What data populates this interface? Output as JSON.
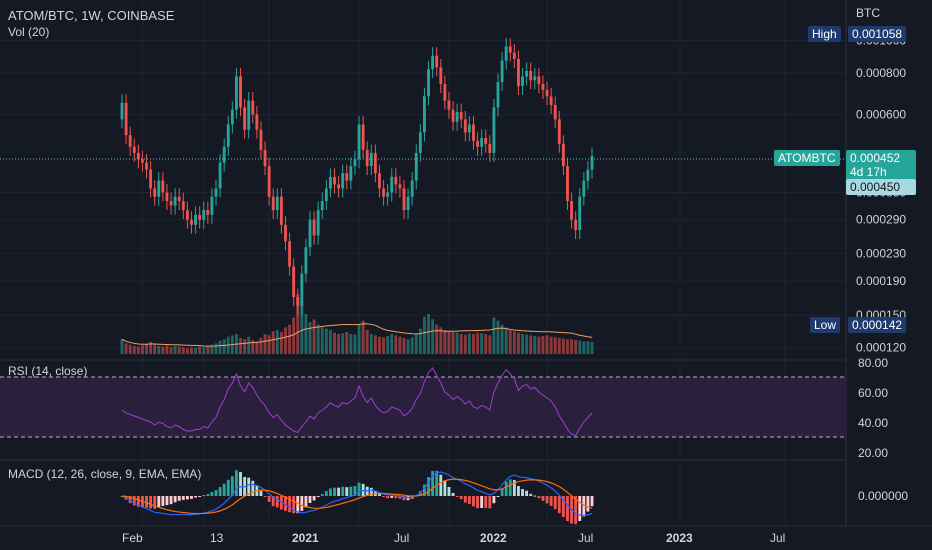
{
  "header": {
    "symbol_line": "ATOM/BTC, 1W, COINBASE",
    "vol_label": "Vol (20)",
    "currency": "BTC"
  },
  "price_panel": {
    "y_ticks": [
      "0.001000",
      "0.000800",
      "0.000600",
      "0.000350",
      "0.000290",
      "0.000230",
      "0.000190",
      "0.000150",
      "0.000120"
    ],
    "high_label": "High",
    "high_value": "0.001058",
    "low_label": "Low",
    "low_value": "0.000142",
    "last_symbol": "ATOMBTC",
    "last_price": "0.000452",
    "countdown": "4d 17h",
    "prev_close": "0.000450"
  },
  "rsi_panel": {
    "label": "RSI (14, close)",
    "ticks": [
      "80.00",
      "60.00",
      "40.00",
      "20.00"
    ]
  },
  "macd_panel": {
    "label": "MACD (12, 26, close, 9, EMA, EMA)",
    "ticks": [
      "0.000000"
    ]
  },
  "time_axis": {
    "labels": [
      "Feb",
      "13",
      "2021",
      "Jul",
      "2022",
      "Jul",
      "2023",
      "Jul"
    ]
  },
  "colors": {
    "background": "#151924",
    "up": "#26a69a",
    "down": "#ef5350",
    "vol_ma": "#f0a060",
    "rsi_line": "#9c3fd0",
    "rsi_band": "#2a1f3d",
    "macd_line": "#2962ff",
    "signal_line": "#ff6d00",
    "price_line": "#5fb8c8",
    "label_box": "#1e3a6e"
  },
  "chart_data": {
    "type": "candlestick",
    "title": "ATOM/BTC, 1W, COINBASE",
    "close": [
      0.00065,
      0.00052,
      0.00048,
      0.00046,
      0.00044,
      0.00043,
      0.00041,
      0.00036,
      0.00034,
      0.00038,
      0.00035,
      0.00033,
      0.00032,
      0.00034,
      0.00033,
      0.00031,
      0.00029,
      0.00028,
      0.0003,
      0.00029,
      0.00031,
      0.0003,
      0.00034,
      0.00036,
      0.00043,
      0.00048,
      0.00056,
      0.00062,
      0.00078,
      0.00063,
      0.00054,
      0.00066,
      0.0006,
      0.00054,
      0.00047,
      0.00042,
      0.00034,
      0.00031,
      0.00034,
      0.00028,
      0.00025,
      0.00021,
      0.00017,
      0.00016,
      0.0002,
      0.00024,
      0.00029,
      0.00026,
      0.00031,
      0.00033,
      0.00036,
      0.00039,
      0.00037,
      0.00036,
      0.0004,
      0.00038,
      0.00042,
      0.00044,
      0.00056,
      0.00047,
      0.00042,
      0.00046,
      0.0004,
      0.00036,
      0.00034,
      0.00035,
      0.00039,
      0.00037,
      0.00036,
      0.00031,
      0.00034,
      0.00038,
      0.00046,
      0.00053,
      0.00068,
      0.00082,
      0.0009,
      0.00083,
      0.00074,
      0.00066,
      0.00062,
      0.00057,
      0.00061,
      0.00058,
      0.00053,
      0.00056,
      0.0005,
      0.00048,
      0.00051,
      0.00049,
      0.00046,
      0.00063,
      0.00075,
      0.00087,
      0.00096,
      0.00092,
      0.00088,
      0.00073,
      0.00078,
      0.00081,
      0.00076,
      0.00078,
      0.00074,
      0.00071,
      0.00068,
      0.00064,
      0.00058,
      0.00049,
      0.00042,
      0.00033,
      0.00029,
      0.00027,
      0.00034,
      0.00038,
      0.00041,
      0.00045
    ],
    "rsi": [
      48,
      46,
      45,
      44,
      43,
      42,
      41,
      40,
      38,
      40,
      39,
      37,
      36,
      38,
      37,
      35,
      34,
      34,
      35,
      35,
      37,
      36,
      40,
      43,
      50,
      55,
      62,
      66,
      72,
      64,
      60,
      66,
      63,
      58,
      54,
      51,
      46,
      43,
      45,
      41,
      38,
      36,
      34,
      33,
      37,
      40,
      44,
      42,
      46,
      48,
      50,
      53,
      51,
      50,
      53,
      52,
      54,
      56,
      64,
      57,
      53,
      56,
      51,
      48,
      46,
      47,
      50,
      49,
      48,
      44,
      46,
      49,
      55,
      59,
      67,
      73,
      76,
      71,
      66,
      60,
      58,
      55,
      57,
      55,
      52,
      54,
      50,
      49,
      51,
      50,
      48,
      60,
      66,
      71,
      75,
      72,
      69,
      61,
      64,
      65,
      62,
      63,
      60,
      58,
      56,
      54,
      50,
      44,
      40,
      35,
      32,
      31,
      36,
      40,
      43,
      46
    ],
    "volume": [
      22,
      16,
      14,
      12,
      11,
      13,
      15,
      18,
      14,
      12,
      11,
      13,
      10,
      12,
      11,
      10,
      9,
      10,
      9,
      11,
      10,
      12,
      14,
      16,
      20,
      22,
      26,
      28,
      30,
      24,
      22,
      26,
      21,
      19,
      24,
      30,
      28,
      34,
      36,
      33,
      40,
      44,
      55,
      90,
      80,
      60,
      48,
      52,
      44,
      40,
      38,
      36,
      32,
      30,
      31,
      33,
      30,
      29,
      44,
      50,
      36,
      30,
      28,
      26,
      25,
      27,
      30,
      28,
      26,
      24,
      22,
      25,
      30,
      38,
      56,
      60,
      52,
      44,
      40,
      36,
      34,
      33,
      32,
      30,
      29,
      31,
      30,
      32,
      31,
      30,
      28,
      55,
      50,
      44,
      40,
      36,
      34,
      32,
      30,
      29,
      28,
      27,
      26,
      27,
      28,
      26,
      25,
      24,
      23,
      22,
      22,
      21,
      20,
      19,
      19,
      18
    ],
    "y_ticks": [
      0.001,
      0.0008,
      0.0006,
      0.00035,
      0.00029,
      0.00023,
      0.00019,
      0.00015,
      0.00012
    ],
    "ylim": [
      0.000115,
      0.00112
    ],
    "log_scale": true,
    "grid": true,
    "last_price": 0.000452,
    "high": 0.001058,
    "low": 0.000142
  }
}
